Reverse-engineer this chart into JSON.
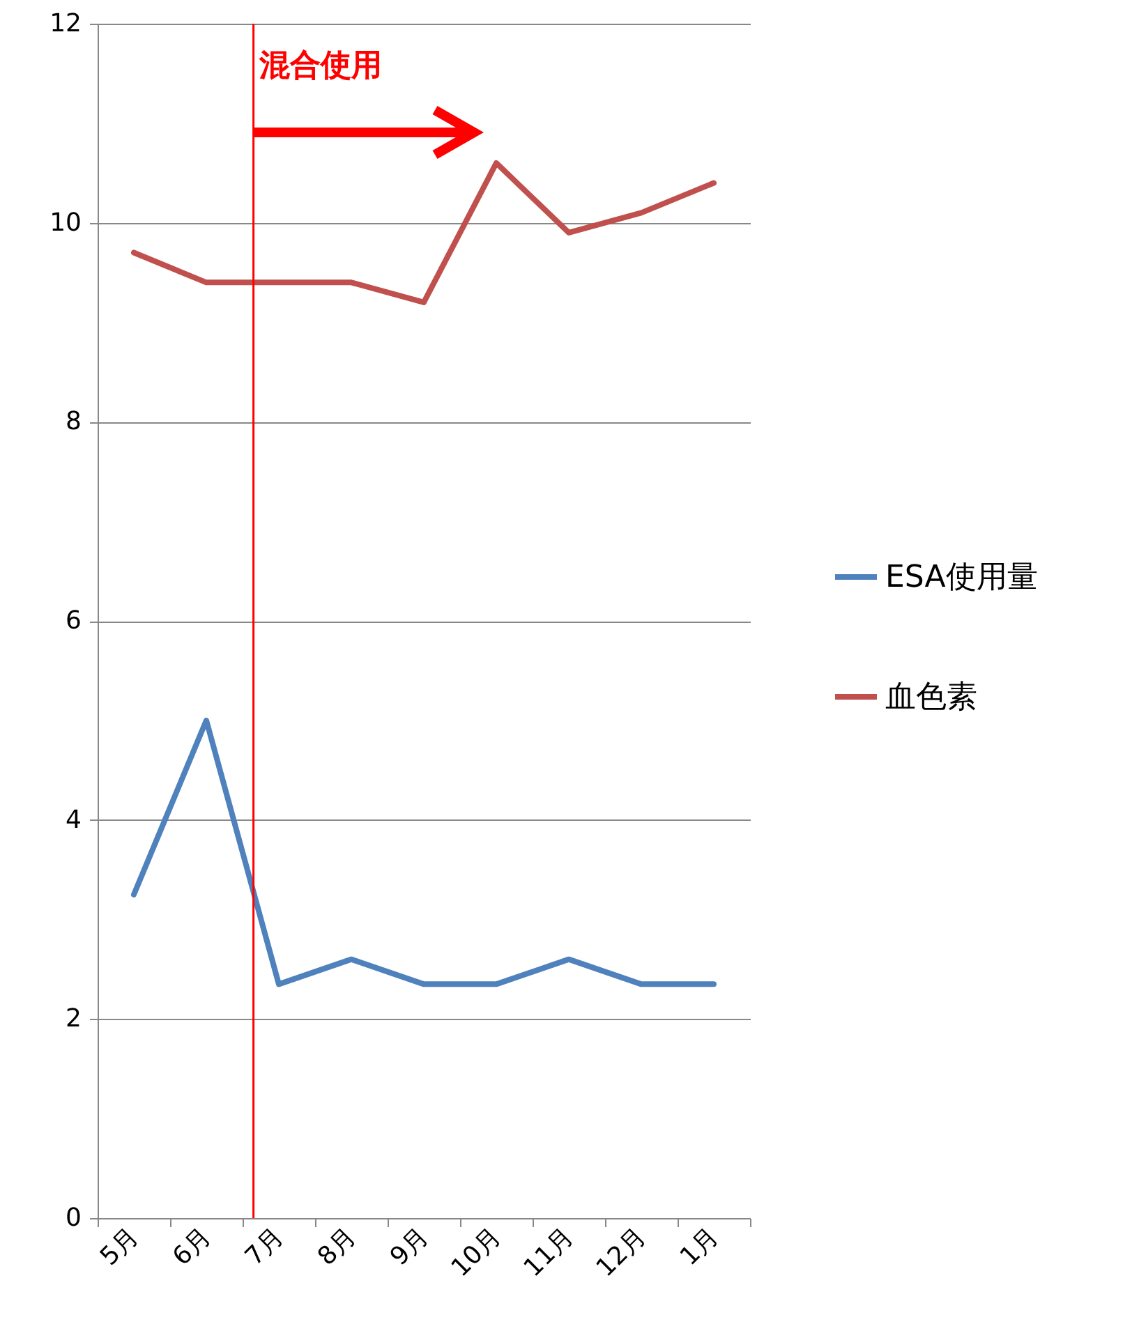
{
  "chart_data": {
    "type": "line",
    "categories": [
      "5月",
      "6月",
      "7月",
      "8月",
      "9月",
      "10月",
      "11月",
      "12月",
      "1月"
    ],
    "series": [
      {
        "name": "ESA使用量",
        "color": "#4f81bd",
        "values": [
          3.25,
          5.0,
          2.35,
          2.6,
          2.35,
          2.35,
          2.6,
          2.35,
          2.35
        ]
      },
      {
        "name": "血色素",
        "color": "#c0504d",
        "values": [
          9.7,
          9.4,
          9.4,
          9.4,
          9.2,
          10.6,
          9.9,
          10.1,
          10.4
        ]
      }
    ],
    "ylim": [
      0,
      12
    ],
    "yticks": [
      0,
      2,
      4,
      6,
      8,
      10,
      12
    ],
    "grid": "y",
    "legend": "right",
    "ref_lines": [
      {
        "axis": "x",
        "value": "7月",
        "label": "混合使用",
        "color": "#ff0000"
      }
    ]
  }
}
